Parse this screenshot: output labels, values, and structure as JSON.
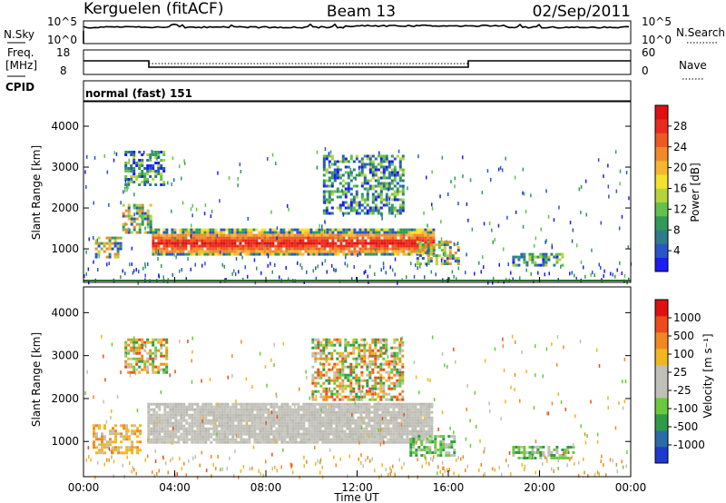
{
  "header": {
    "station": "Kerguelen (fitACF)",
    "beam": "Beam 13",
    "date": "02/Sep/2011"
  },
  "noise_panel": {
    "left_label": "N.Sky",
    "right_label": "N.Search",
    "ticks_left": [
      "10^5",
      "10^0"
    ],
    "ticks_right": [
      "10^5",
      "10^0"
    ]
  },
  "freq_panel": {
    "left_label_line1": "Freq.",
    "left_label_line2": "[MHz]",
    "right_label": "Nave",
    "ticks_left": [
      "18",
      "8"
    ],
    "ticks_right": [
      "60",
      "0"
    ]
  },
  "cpid_panel": {
    "label": "CPID",
    "value": "normal (fast) 151"
  },
  "chart_data": [
    {
      "type": "heatmap",
      "name": "power",
      "ylabel": "Slant Range [km]",
      "ylim": [
        180,
        4600
      ],
      "yticks": [
        "1000",
        "2000",
        "3000",
        "4000"
      ],
      "xlim_hours": [
        0,
        24
      ],
      "colorbar": {
        "label": "Power [dB]",
        "ticks": [
          "4",
          "8",
          "12",
          "16",
          "20",
          "24",
          "28"
        ],
        "colors": [
          "#1c1cf5",
          "#2a55c6",
          "#2e7b8c",
          "#2f9a5a",
          "#62c24a",
          "#b5d33a",
          "#f5e22a",
          "#f4b830",
          "#f08a2a",
          "#ee5a22",
          "#ea2a1e",
          "#e01010"
        ]
      },
      "regions": [
        {
          "t": [
            3.0,
            15.3
          ],
          "r": [
            900,
            1500
          ],
          "level": "high"
        },
        {
          "t": [
            14.6,
            16.5
          ],
          "r": [
            650,
            1200
          ],
          "level": "mid"
        },
        {
          "t": [
            0.5,
            1.6
          ],
          "r": [
            800,
            1300
          ],
          "level": "mid"
        },
        {
          "t": [
            1.7,
            2.9
          ],
          "r": [
            1400,
            2100
          ],
          "level": "mid"
        },
        {
          "t": [
            1.8,
            3.5
          ],
          "r": [
            2600,
            3400
          ],
          "level": "low"
        },
        {
          "t": [
            10.5,
            14.0
          ],
          "r": [
            1900,
            3300
          ],
          "level": "low"
        },
        {
          "t": [
            18.8,
            21.0
          ],
          "r": [
            600,
            900
          ],
          "level": "low"
        }
      ]
    },
    {
      "type": "heatmap",
      "name": "velocity",
      "ylabel": "Slant Range [km]",
      "xlabel": "Time UT",
      "ylim": [
        180,
        4600
      ],
      "yticks": [
        "1000",
        "2000",
        "3000",
        "4000"
      ],
      "xticks": [
        "00:00",
        "04:00",
        "08:00",
        "12:00",
        "16:00",
        "20:00",
        "00:00"
      ],
      "colorbar": {
        "label": "Velocity [m s⁻¹]",
        "ticks": [
          "1000",
          "500",
          "100",
          "25",
          "-25",
          "-100",
          "-500",
          "-1000"
        ],
        "colors": [
          "#1c3ad0",
          "#2a6ca8",
          "#2f9b48",
          "#69cb3c",
          "#c0c0b8",
          "#c0c0b8",
          "#f2b620",
          "#f08a20",
          "#ee4a1c",
          "#e01010"
        ]
      },
      "regions": [
        {
          "t": [
            2.8,
            15.3
          ],
          "r": [
            950,
            1900
          ],
          "level": "gray"
        },
        {
          "t": [
            0.4,
            2.5
          ],
          "r": [
            750,
            1400
          ],
          "level": "orange"
        },
        {
          "t": [
            14.3,
            16.3
          ],
          "r": [
            650,
            1150
          ],
          "level": "green"
        },
        {
          "t": [
            18.8,
            21.5
          ],
          "r": [
            600,
            900
          ],
          "level": "green"
        },
        {
          "t": [
            1.8,
            3.6
          ],
          "r": [
            2600,
            3400
          ],
          "level": "mixed"
        },
        {
          "t": [
            10.0,
            14.0
          ],
          "r": [
            2000,
            3400
          ],
          "level": "mixed"
        }
      ]
    }
  ]
}
